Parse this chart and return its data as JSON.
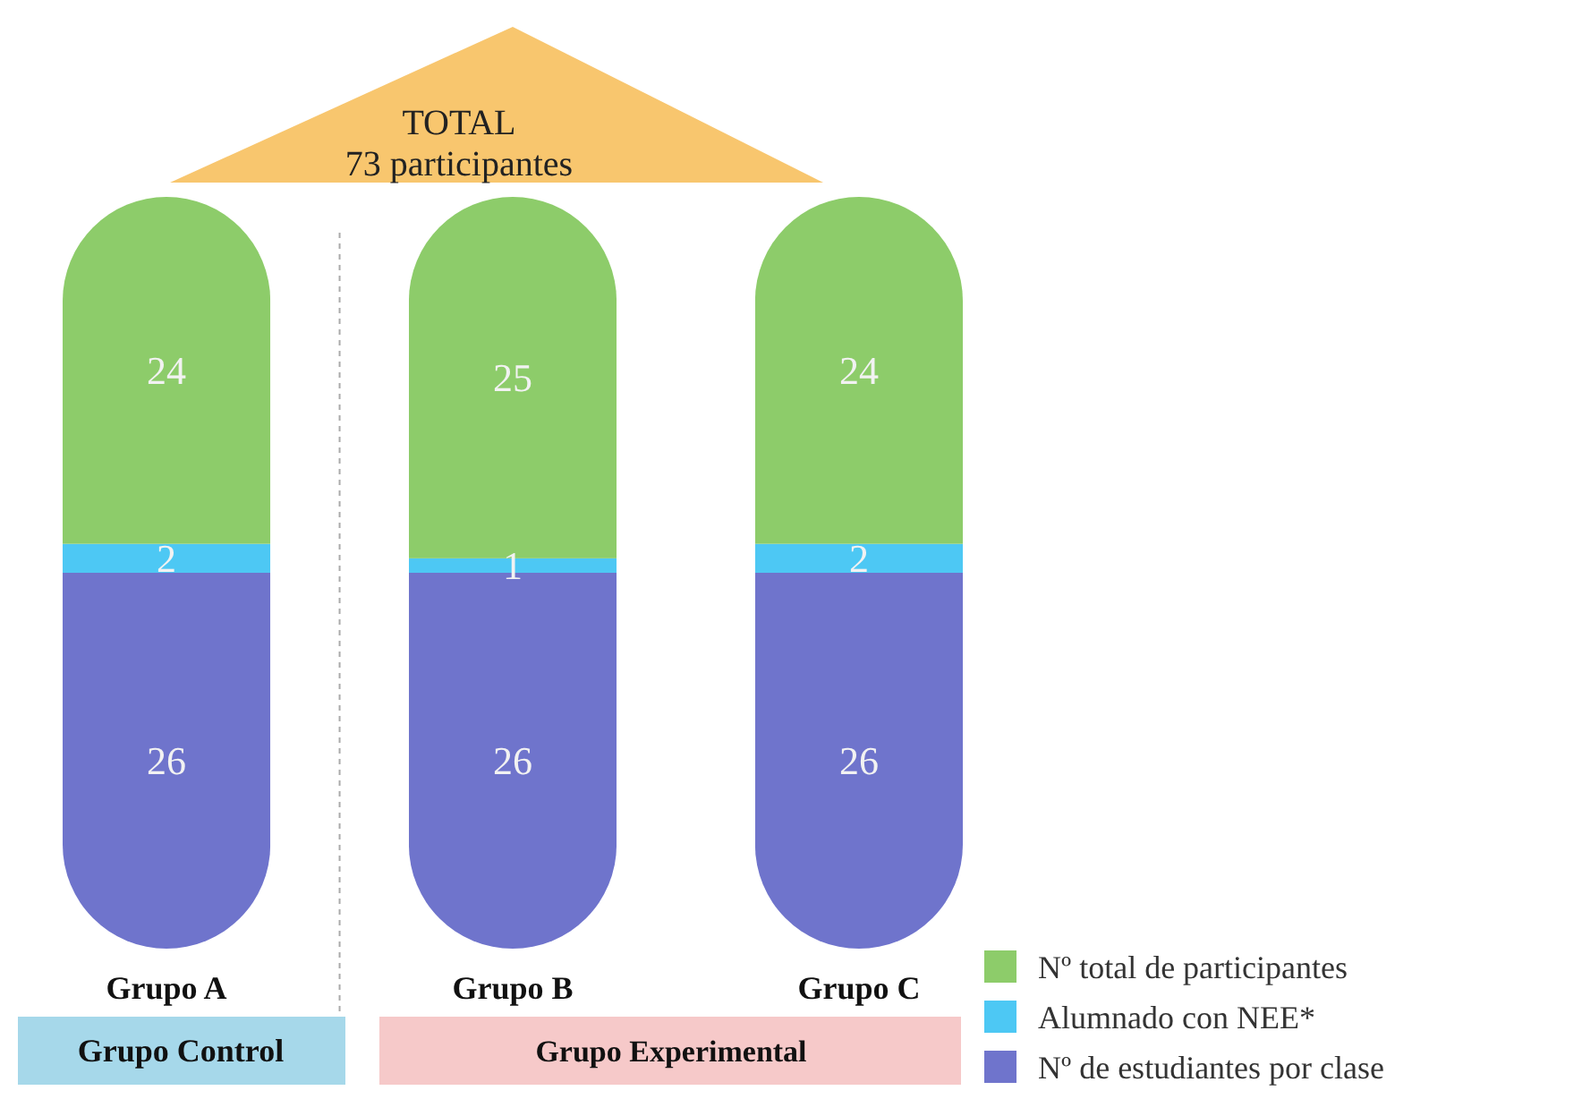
{
  "chart_data": {
    "type": "bar",
    "stacked": true,
    "data_labels": true,
    "legend": "bottom right",
    "categories": [
      "Grupo A",
      "Grupo B",
      "Grupo C"
    ],
    "series": [
      {
        "name": "Nº de estudiantes por clase",
        "color": "#6f74cc",
        "values": [
          26,
          26,
          26
        ]
      },
      {
        "name": "Alumnado con NEE*",
        "color": "#4dc8f4",
        "values": [
          2,
          1,
          2
        ]
      },
      {
        "name": "Nº total de participantes",
        "color": "#8dcc6a",
        "values": [
          24,
          25,
          24
        ]
      }
    ],
    "annotations": [
      "TOTAL",
      "73 participantes",
      "Grupo Control",
      "Grupo Experimental"
    ]
  }
}
